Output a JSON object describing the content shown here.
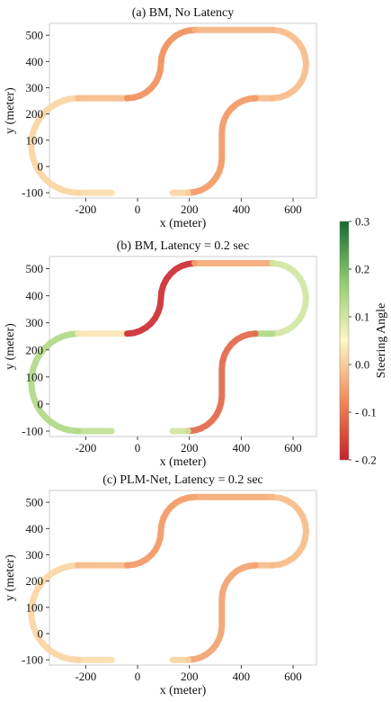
{
  "chart_data": [
    {
      "type": "line",
      "title": "(a)  BM, No Latency",
      "xlabel": "x (meter)",
      "ylabel": "y (meter)",
      "xlim": [
        -340,
        690
      ],
      "ylim": [
        -120,
        545
      ],
      "xticks": [
        -200,
        0,
        200,
        400,
        600
      ],
      "yticks": [
        -100,
        0,
        100,
        200,
        300,
        400,
        500
      ],
      "colorbar": "none",
      "steering_angle_by_segment": [
        {
          "segment": "bottom-left start",
          "value": 0.02
        },
        {
          "segment": "left loop",
          "value": 0.01
        },
        {
          "segment": "middle-left straight",
          "value": -0.02
        },
        {
          "segment": "center S-curve",
          "value": -0.07
        },
        {
          "segment": "top straight",
          "value": -0.03
        },
        {
          "segment": "right loop",
          "value": -0.02
        },
        {
          "segment": "middle-right straight",
          "value": -0.02
        },
        {
          "segment": "lower S-curve",
          "value": -0.06
        },
        {
          "segment": "bottom-right end",
          "value": 0.01
        }
      ]
    },
    {
      "type": "line",
      "title": "(b)  BM, Latency = 0.2 sec",
      "xlabel": "x (meter)",
      "ylabel": "y (meter)",
      "xlim": [
        -340,
        690
      ],
      "ylim": [
        -120,
        545
      ],
      "xticks": [
        -200,
        0,
        200,
        400,
        600
      ],
      "yticks": [
        -100,
        0,
        100,
        200,
        300,
        400,
        500
      ],
      "steering_angle_by_segment": [
        {
          "segment": "bottom-left start",
          "value": 0.12
        },
        {
          "segment": "left loop",
          "value": 0.14
        },
        {
          "segment": "middle-left straight",
          "value": 0.03
        },
        {
          "segment": "center S-curve",
          "value": -0.19
        },
        {
          "segment": "top straight",
          "value": -0.04
        },
        {
          "segment": "right loop",
          "value": 0.1
        },
        {
          "segment": "middle-right straight",
          "value": 0.14
        },
        {
          "segment": "lower S-curve",
          "value": -0.12
        },
        {
          "segment": "bottom-right end",
          "value": 0.1
        }
      ]
    },
    {
      "type": "line",
      "title": "(c)  PLM-Net, Latency = 0.2 sec",
      "xlabel": "x (meter)",
      "ylabel": "y (meter)",
      "xlim": [
        -340,
        690
      ],
      "ylim": [
        -120,
        545
      ],
      "xticks": [
        -200,
        0,
        200,
        400,
        600
      ],
      "yticks": [
        -100,
        0,
        100,
        200,
        300,
        400,
        500
      ],
      "steering_angle_by_segment": [
        {
          "segment": "bottom-left start",
          "value": 0.02
        },
        {
          "segment": "left loop",
          "value": 0.01
        },
        {
          "segment": "middle-left straight",
          "value": -0.02
        },
        {
          "segment": "center S-curve",
          "value": -0.06
        },
        {
          "segment": "top straight",
          "value": -0.04
        },
        {
          "segment": "right loop",
          "value": -0.02
        },
        {
          "segment": "middle-right straight",
          "value": -0.02
        },
        {
          "segment": "lower S-curve",
          "value": -0.05
        },
        {
          "segment": "bottom-right end",
          "value": 0.01
        }
      ]
    }
  ],
  "colorbar": {
    "label": "Steering Angle",
    "range": [
      -0.2,
      0.3
    ],
    "ticks": [
      "0.3",
      "0.2",
      "0.1",
      "0.0",
      "- 0.1",
      "- 0.2"
    ],
    "tick_values": [
      0.3,
      0.2,
      0.1,
      0.0,
      -0.1,
      -0.2
    ],
    "colors": [
      "#c8202b",
      "#f08a55",
      "#fdf7c4",
      "#8fcc6b",
      "#136b32"
    ]
  }
}
